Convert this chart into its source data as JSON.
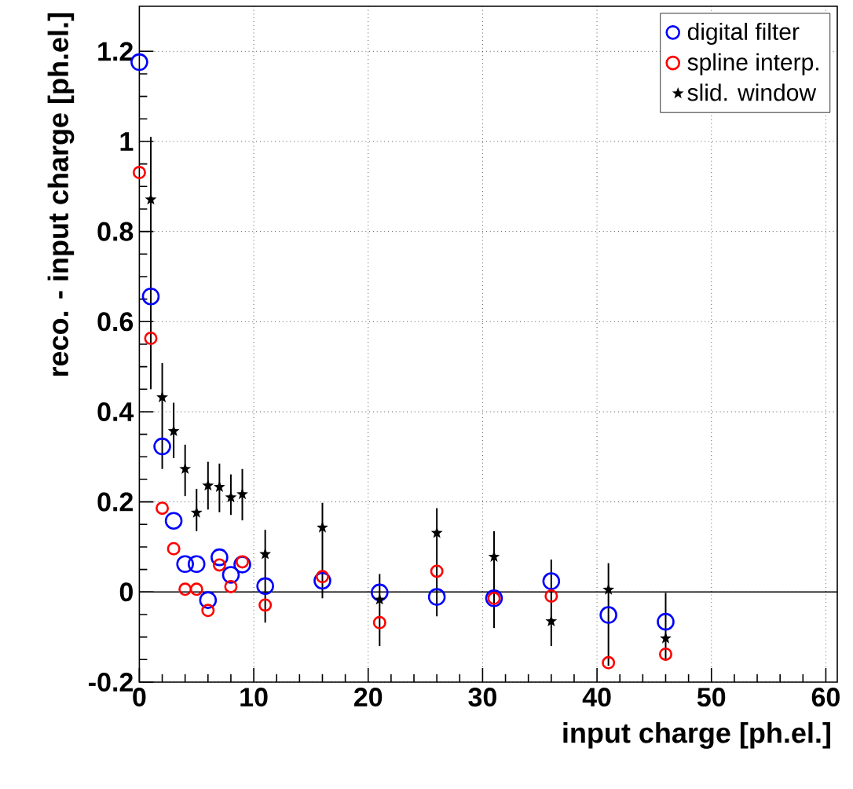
{
  "chart_data": {
    "type": "scatter",
    "xlabel": "input charge [ph.el.]",
    "ylabel": "reco. - input charge [ph.el.]",
    "x": [
      0,
      1,
      2,
      3,
      4,
      5,
      6,
      7,
      8,
      9,
      11,
      16,
      21,
      26,
      31,
      36,
      41,
      46
    ],
    "series": [
      {
        "name": "digital filter",
        "color": "#0000ff",
        "marker": "circle",
        "values": [
          1.176,
          0.656,
          0.323,
          0.158,
          0.062,
          0.062,
          -0.018,
          0.077,
          0.038,
          0.061,
          0.013,
          0.025,
          -0.001,
          -0.011,
          -0.014,
          0.024,
          -0.051,
          -0.066
        ]
      },
      {
        "name": "spline interp.",
        "color": "#ff0000",
        "marker": "circle",
        "values": [
          0.931,
          0.563,
          0.186,
          0.096,
          0.006,
          0.006,
          -0.041,
          0.06,
          0.012,
          0.067,
          -0.029,
          0.034,
          -0.068,
          0.046,
          -0.014,
          -0.009,
          -0.157,
          -0.138
        ]
      },
      {
        "name": "slid. window",
        "color": "#000000",
        "marker": "star",
        "values": [
          null,
          0.871,
          0.432,
          0.357,
          0.273,
          0.176,
          0.236,
          0.233,
          0.21,
          0.217,
          0.084,
          0.143,
          -0.017,
          0.131,
          0.078,
          -0.065,
          0.005,
          -0.103
        ],
        "errors": [
          null,
          [
            0.45,
            1.01
          ],
          [
            0.273,
            0.508
          ],
          [
            0.297,
            0.42
          ],
          [
            0.213,
            0.327
          ],
          [
            0.135,
            0.229
          ],
          [
            0.183,
            0.289
          ],
          [
            0.177,
            0.285
          ],
          [
            0.171,
            0.261
          ],
          [
            0.159,
            0.273
          ],
          [
            -0.068,
            0.138
          ],
          [
            -0.014,
            0.198
          ],
          [
            -0.12,
            0.04
          ],
          [
            -0.054,
            0.186
          ],
          [
            -0.08,
            0.135
          ],
          [
            -0.12,
            0.072
          ],
          [
            -0.164,
            0.064
          ],
          [
            -0.152,
            -0.002
          ]
        ]
      }
    ],
    "xlim": [
      0,
      61
    ],
    "ylim": [
      -0.2,
      1.3
    ],
    "xticks": [
      0,
      10,
      20,
      30,
      40,
      50,
      60
    ],
    "yticks": [
      -0.2,
      0,
      0.2,
      0.4,
      0.6,
      0.8,
      1,
      1.2
    ],
    "ref_lines": [
      {
        "axis": "y",
        "value": 0,
        "color": "#000000"
      }
    ],
    "grid": true,
    "legend": "top right"
  }
}
